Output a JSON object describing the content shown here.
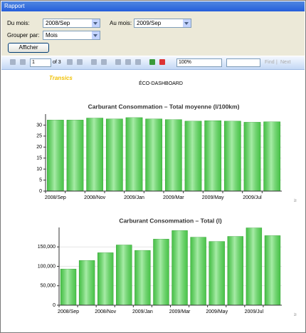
{
  "window": {
    "title": "Rapport"
  },
  "form": {
    "from_label": "Du mois:",
    "from_value": "2008/Sep",
    "to_label": "Au mois:",
    "to_value": "2009/Sep",
    "group_label": "Grouper par:",
    "group_value": "Mois",
    "button": "Afficher"
  },
  "toolbar": {
    "page": "1",
    "page_count": "of 3",
    "zoom": "100%",
    "find": "Find",
    "next": "Next"
  },
  "report": {
    "logo": "Transics",
    "title": "ÉCO-DASHBOARD"
  },
  "chart_data": [
    {
      "type": "bar",
      "title": "Carburant Consommation – Total moyenne (l/100km)",
      "categories": [
        "2008/Sep",
        null,
        "2008/Nov",
        null,
        "2009/Jan",
        null,
        "2009/Mar",
        null,
        "2009/May",
        null,
        "2009/Jul",
        null
      ],
      "values": [
        32.3,
        32.3,
        33.2,
        32.8,
        33.4,
        32.8,
        32.5,
        31.8,
        32.0,
        31.8,
        31.3,
        31.5
      ],
      "color": "#5fdc5f",
      "ylim": [
        0,
        35
      ],
      "yticks": [
        0,
        5,
        10,
        15,
        20,
        25,
        30
      ],
      "grid": true
    },
    {
      "type": "bar",
      "title": "Carburant Consommation – Total (l)",
      "categories": [
        "2008/Sep",
        null,
        "2008/Nov",
        null,
        "2009/Jan",
        null,
        "2009/Mar",
        null,
        "2009/May",
        null,
        "2009/Jul",
        null
      ],
      "values": [
        93000,
        115000,
        135000,
        155000,
        141000,
        170000,
        192000,
        175000,
        164000,
        177000,
        199000,
        179000
      ],
      "color": "#5fdc5f",
      "ylim": [
        0,
        200000
      ],
      "yticks": [
        0,
        {
          "value": 50000,
          "label": "50,000"
        },
        {
          "value": 100000,
          "label": "100,000"
        },
        {
          "value": 150000,
          "label": "150,000"
        }
      ],
      "grid": true
    }
  ]
}
